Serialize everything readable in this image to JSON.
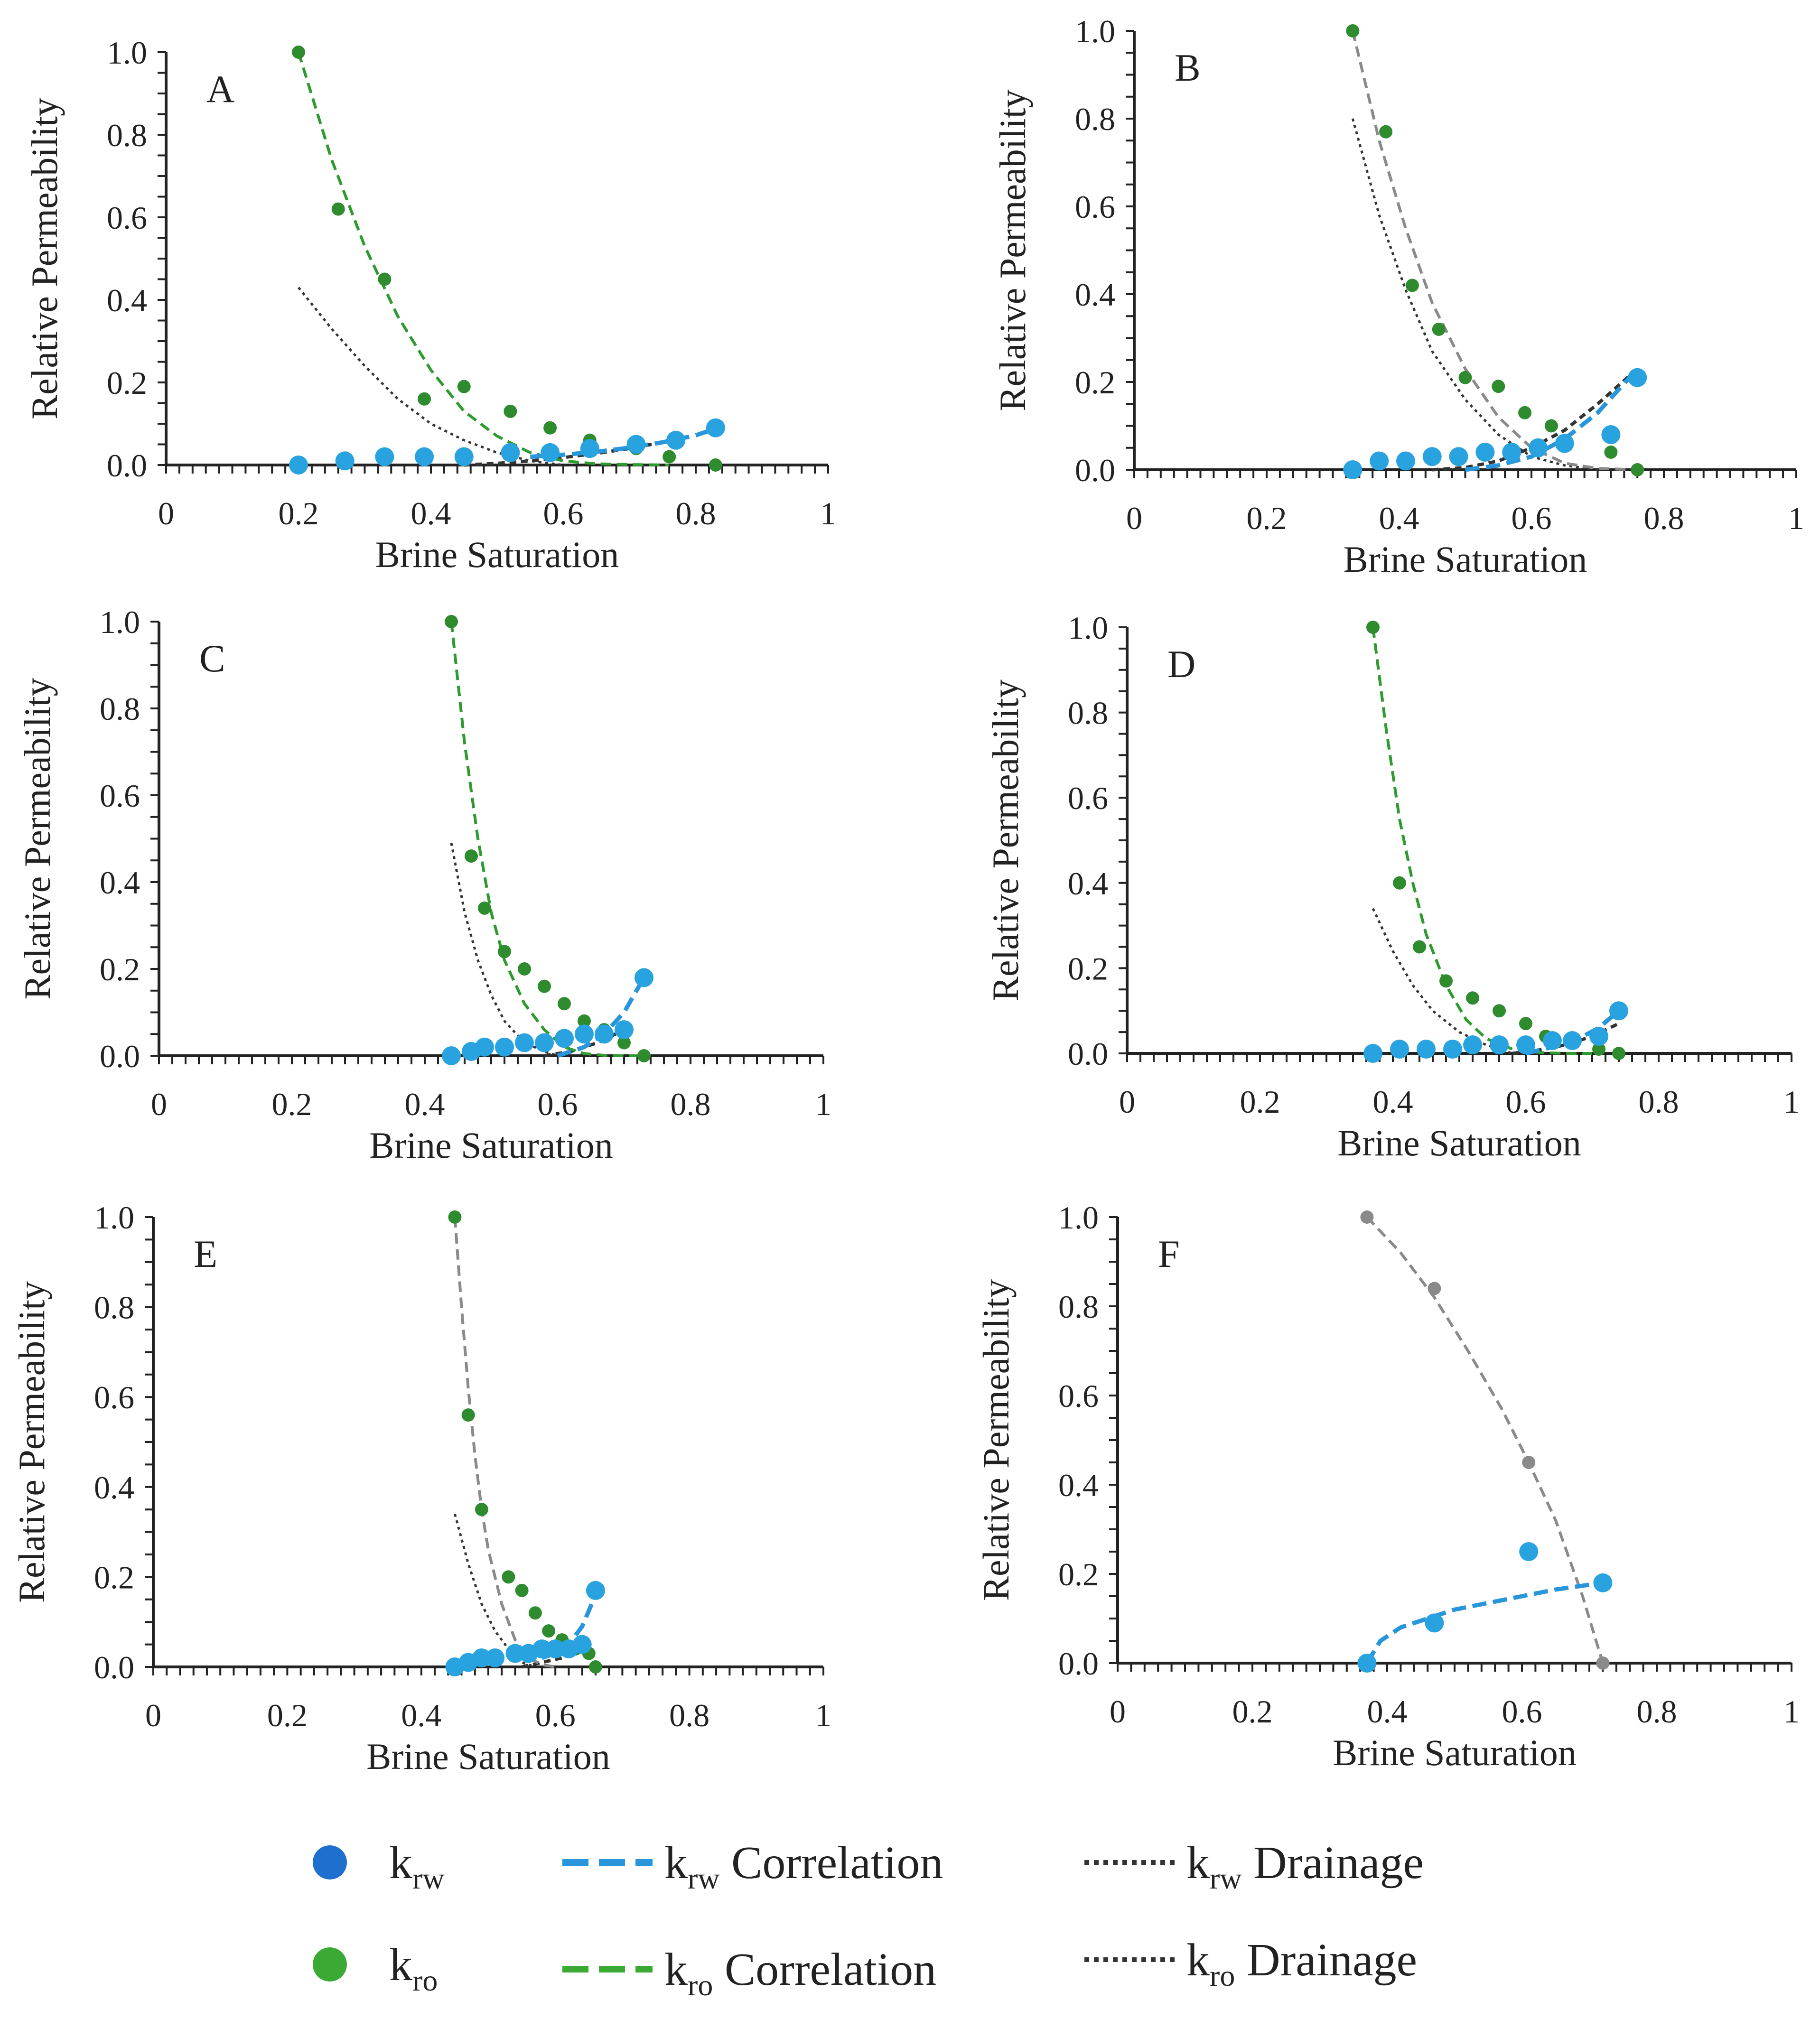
{
  "colors": {
    "krw_marker": "#29a3e0",
    "kro_marker": "#2e8b2e",
    "krw_legend_marker": "#1f6fcf",
    "kro_legend_marker": "#3aaa35",
    "krw_correlation": "#2996dc",
    "kro_correlation": "#2e9b2e",
    "drainage": "#333333",
    "gray_correlation": "#8a8a8a",
    "gray_marker": "#8a8a8a",
    "axis": "#222222"
  },
  "legend": {
    "krw": {
      "k": "k",
      "sub": "rw",
      "text": ""
    },
    "krw_correlation": {
      "k": "k",
      "sub": "rw",
      "text": " Correlation"
    },
    "krw_drainage": {
      "k": "k",
      "sub": "rw",
      "text": " Drainage"
    },
    "kro": {
      "k": "k",
      "sub": "ro",
      "text": ""
    },
    "kro_correlation": {
      "k": "k",
      "sub": "ro",
      "text": " Correlation"
    },
    "kro_drainage": {
      "k": "k",
      "sub": "ro",
      "text": " Drainage"
    }
  },
  "chart_data": [
    {
      "type": "scatter",
      "panel": "A",
      "xlabel": "Brine Saturation",
      "ylabel": "Relative Permeability",
      "xlim": [
        0,
        1
      ],
      "ylim": [
        0,
        1
      ],
      "xticks": [
        "0",
        "0.2",
        "0.4",
        "0.6",
        "0.8",
        "1"
      ],
      "yticks": [
        "0.0",
        "0.2",
        "0.4",
        "0.6",
        "0.8",
        "1.0"
      ],
      "kro_marker_style": "green",
      "kro_corr_style": "green",
      "krw": {
        "x": [
          0.2,
          0.27,
          0.33,
          0.39,
          0.45,
          0.52,
          0.58,
          0.64,
          0.71,
          0.77,
          0.83
        ],
        "y": [
          0.0,
          0.01,
          0.02,
          0.02,
          0.02,
          0.03,
          0.03,
          0.04,
          0.05,
          0.06,
          0.09
        ]
      },
      "kro": {
        "x": [
          0.2,
          0.26,
          0.33,
          0.39,
          0.45,
          0.52,
          0.58,
          0.64,
          0.71,
          0.76,
          0.83
        ],
        "y": [
          1.0,
          0.62,
          0.45,
          0.16,
          0.19,
          0.13,
          0.09,
          0.06,
          0.04,
          0.02,
          0.0
        ]
      },
      "krw_corr": {
        "x": [
          0.55,
          0.6,
          0.65,
          0.7,
          0.75,
          0.8,
          0.83
        ],
        "y": [
          0.02,
          0.025,
          0.032,
          0.042,
          0.055,
          0.072,
          0.088
        ]
      },
      "kro_corr": {
        "x": [
          0.2,
          0.25,
          0.3,
          0.35,
          0.4,
          0.45,
          0.5,
          0.55,
          0.6,
          0.65,
          0.7,
          0.76
        ],
        "y": [
          1.0,
          0.74,
          0.53,
          0.36,
          0.23,
          0.13,
          0.07,
          0.03,
          0.01,
          0.003,
          0.001,
          0.0
        ]
      },
      "krw_drain": {
        "x": [
          0.45,
          0.5,
          0.55,
          0.6,
          0.65,
          0.7,
          0.75
        ],
        "y": [
          0.0,
          0.004,
          0.01,
          0.018,
          0.028,
          0.04,
          0.055
        ]
      },
      "kro_drain": {
        "x": [
          0.2,
          0.25,
          0.3,
          0.35,
          0.4,
          0.45,
          0.5,
          0.55,
          0.6
        ],
        "y": [
          0.43,
          0.33,
          0.24,
          0.16,
          0.1,
          0.06,
          0.03,
          0.01,
          0.0
        ]
      }
    },
    {
      "type": "scatter",
      "panel": "B",
      "xlabel": "Brine Saturation",
      "ylabel": "Relative Permeability",
      "xlim": [
        0,
        1
      ],
      "ylim": [
        0,
        1
      ],
      "xticks": [
        "0",
        "0.2",
        "0.4",
        "0.6",
        "0.8",
        "1"
      ],
      "yticks": [
        "0.0",
        "0.2",
        "0.4",
        "0.6",
        "0.8",
        "1.0"
      ],
      "kro_marker_style": "green",
      "kro_corr_style": "gray",
      "krw": {
        "x": [
          0.33,
          0.37,
          0.41,
          0.45,
          0.49,
          0.53,
          0.57,
          0.61,
          0.65,
          0.72,
          0.76
        ],
        "y": [
          0.0,
          0.02,
          0.02,
          0.03,
          0.03,
          0.04,
          0.04,
          0.05,
          0.06,
          0.08,
          0.21
        ]
      },
      "kro": {
        "x": [
          0.33,
          0.38,
          0.42,
          0.46,
          0.5,
          0.55,
          0.59,
          0.63,
          0.72,
          0.76
        ],
        "y": [
          1.0,
          0.77,
          0.42,
          0.32,
          0.21,
          0.19,
          0.13,
          0.1,
          0.04,
          0.0
        ]
      },
      "krw_corr": {
        "x": [
          0.5,
          0.55,
          0.6,
          0.65,
          0.7,
          0.76
        ],
        "y": [
          0.0,
          0.01,
          0.03,
          0.07,
          0.13,
          0.23
        ]
      },
      "kro_corr": {
        "x": [
          0.33,
          0.37,
          0.41,
          0.45,
          0.5,
          0.55,
          0.6,
          0.65,
          0.7,
          0.76
        ],
        "y": [
          1.0,
          0.75,
          0.55,
          0.38,
          0.23,
          0.12,
          0.05,
          0.015,
          0.003,
          0.0
        ]
      },
      "krw_drain": {
        "x": [
          0.45,
          0.5,
          0.55,
          0.6,
          0.65,
          0.7,
          0.76
        ],
        "y": [
          0.0,
          0.005,
          0.02,
          0.05,
          0.09,
          0.15,
          0.23
        ]
      },
      "kro_drain": {
        "x": [
          0.33,
          0.37,
          0.41,
          0.45,
          0.5,
          0.55,
          0.6,
          0.65,
          0.7
        ],
        "y": [
          0.8,
          0.58,
          0.41,
          0.27,
          0.16,
          0.08,
          0.03,
          0.01,
          0.0
        ]
      }
    },
    {
      "type": "scatter",
      "panel": "C",
      "xlabel": "Brine Saturation",
      "ylabel": "Relative Permeability",
      "xlim": [
        0,
        1
      ],
      "ylim": [
        0,
        1
      ],
      "xticks": [
        "0",
        "0.2",
        "0.4",
        "0.6",
        "0.8",
        "1"
      ],
      "yticks": [
        "0.0",
        "0.2",
        "0.4",
        "0.6",
        "0.8",
        "1.0"
      ],
      "kro_marker_style": "green",
      "kro_corr_style": "green",
      "krw": {
        "x": [
          0.44,
          0.47,
          0.49,
          0.52,
          0.55,
          0.58,
          0.61,
          0.64,
          0.67,
          0.7,
          0.73
        ],
        "y": [
          0.0,
          0.01,
          0.02,
          0.02,
          0.03,
          0.03,
          0.04,
          0.05,
          0.05,
          0.06,
          0.18
        ]
      },
      "kro": {
        "x": [
          0.44,
          0.47,
          0.49,
          0.52,
          0.55,
          0.58,
          0.61,
          0.64,
          0.67,
          0.7,
          0.73
        ],
        "y": [
          1.0,
          0.46,
          0.34,
          0.24,
          0.2,
          0.16,
          0.12,
          0.08,
          0.06,
          0.03,
          0.0
        ]
      },
      "krw_corr": {
        "x": [
          0.6,
          0.64,
          0.67,
          0.7,
          0.73
        ],
        "y": [
          0.0,
          0.02,
          0.05,
          0.1,
          0.18
        ]
      },
      "kro_corr": {
        "x": [
          0.44,
          0.46,
          0.48,
          0.5,
          0.52,
          0.55,
          0.58,
          0.61,
          0.64,
          0.67,
          0.7,
          0.73
        ],
        "y": [
          1.0,
          0.72,
          0.5,
          0.33,
          0.22,
          0.12,
          0.06,
          0.02,
          0.005,
          0.001,
          0.0,
          0.0
        ]
      },
      "krw_drain": {
        "x": [
          0.58,
          0.62,
          0.66,
          0.7
        ],
        "y": [
          0.0,
          0.01,
          0.03,
          0.06
        ]
      },
      "kro_drain": {
        "x": [
          0.44,
          0.46,
          0.48,
          0.5,
          0.52,
          0.55,
          0.58,
          0.6
        ],
        "y": [
          0.49,
          0.33,
          0.22,
          0.14,
          0.08,
          0.03,
          0.01,
          0.0
        ]
      }
    },
    {
      "type": "scatter",
      "panel": "D",
      "xlabel": "Brine Saturation",
      "ylabel": "Relative Permeability",
      "xlim": [
        0,
        1
      ],
      "ylim": [
        0,
        1
      ],
      "xticks": [
        "0",
        "0.2",
        "0.4",
        "0.6",
        "0.8",
        "1"
      ],
      "yticks": [
        "0.0",
        "0.2",
        "0.4",
        "0.6",
        "0.8",
        "1.0"
      ],
      "kro_marker_style": "green",
      "kro_corr_style": "green",
      "krw": {
        "x": [
          0.37,
          0.41,
          0.45,
          0.49,
          0.52,
          0.56,
          0.6,
          0.64,
          0.67,
          0.71,
          0.74
        ],
        "y": [
          0.0,
          0.01,
          0.01,
          0.01,
          0.02,
          0.02,
          0.02,
          0.03,
          0.03,
          0.04,
          0.1
        ]
      },
      "kro": {
        "x": [
          0.37,
          0.41,
          0.44,
          0.48,
          0.52,
          0.56,
          0.6,
          0.63,
          0.67,
          0.71,
          0.74
        ],
        "y": [
          1.0,
          0.4,
          0.25,
          0.17,
          0.13,
          0.1,
          0.07,
          0.04,
          0.03,
          0.01,
          0.0
        ]
      },
      "krw_corr": {
        "x": [
          0.6,
          0.64,
          0.68,
          0.71,
          0.74
        ],
        "y": [
          0.0,
          0.015,
          0.035,
          0.06,
          0.1
        ]
      },
      "kro_corr": {
        "x": [
          0.37,
          0.39,
          0.41,
          0.43,
          0.45,
          0.48,
          0.51,
          0.54,
          0.58,
          0.62,
          0.66,
          0.7
        ],
        "y": [
          1.0,
          0.76,
          0.55,
          0.4,
          0.28,
          0.16,
          0.08,
          0.035,
          0.01,
          0.002,
          0.0,
          0.0
        ]
      },
      "krw_drain": {
        "x": [
          0.58,
          0.62,
          0.66,
          0.7,
          0.74
        ],
        "y": [
          0.0,
          0.008,
          0.02,
          0.04,
          0.07
        ]
      },
      "kro_drain": {
        "x": [
          0.37,
          0.4,
          0.43,
          0.46,
          0.5,
          0.54,
          0.58
        ],
        "y": [
          0.34,
          0.24,
          0.16,
          0.1,
          0.05,
          0.02,
          0.0
        ]
      }
    },
    {
      "type": "scatter",
      "panel": "E",
      "xlabel": "Brine Saturation",
      "ylabel": "Relative Permeability",
      "xlim": [
        0,
        1
      ],
      "ylim": [
        0,
        1
      ],
      "xticks": [
        "0",
        "0.2",
        "0.4",
        "0.6",
        "0.8",
        "1"
      ],
      "yticks": [
        "0.0",
        "0.2",
        "0.4",
        "0.6",
        "0.8",
        "1.0"
      ],
      "kro_marker_style": "green",
      "kro_corr_style": "gray",
      "krw": {
        "x": [
          0.45,
          0.47,
          0.49,
          0.51,
          0.54,
          0.56,
          0.58,
          0.6,
          0.62,
          0.64,
          0.66
        ],
        "y": [
          0.0,
          0.01,
          0.02,
          0.02,
          0.03,
          0.03,
          0.04,
          0.04,
          0.04,
          0.05,
          0.17
        ]
      },
      "kro": {
        "x": [
          0.45,
          0.47,
          0.49,
          0.53,
          0.55,
          0.57,
          0.59,
          0.61,
          0.63,
          0.65,
          0.66
        ],
        "y": [
          1.0,
          0.56,
          0.35,
          0.2,
          0.17,
          0.12,
          0.08,
          0.06,
          0.04,
          0.03,
          0.0
        ]
      },
      "krw_corr": {
        "x": [
          0.58,
          0.6,
          0.62,
          0.64,
          0.66
        ],
        "y": [
          0.02,
          0.03,
          0.05,
          0.09,
          0.16
        ]
      },
      "kro_corr": {
        "x": [
          0.45,
          0.46,
          0.47,
          0.48,
          0.49,
          0.5,
          0.52,
          0.54,
          0.56,
          0.58,
          0.6
        ],
        "y": [
          1.0,
          0.8,
          0.62,
          0.47,
          0.35,
          0.26,
          0.14,
          0.06,
          0.02,
          0.005,
          0.0
        ]
      },
      "krw_drain": {
        "x": [
          0.55,
          0.58,
          0.61,
          0.64
        ],
        "y": [
          0.0,
          0.01,
          0.02,
          0.04
        ]
      },
      "kro_drain": {
        "x": [
          0.45,
          0.47,
          0.49,
          0.51,
          0.53,
          0.55,
          0.57
        ],
        "y": [
          0.34,
          0.23,
          0.14,
          0.08,
          0.04,
          0.01,
          0.0
        ]
      }
    },
    {
      "type": "scatter",
      "panel": "F",
      "xlabel": "Brine Saturation",
      "ylabel": "Relative Permeability",
      "xlim": [
        0,
        1
      ],
      "ylim": [
        0,
        1
      ],
      "xticks": [
        "0",
        "0.2",
        "0.4",
        "0.6",
        "0.8",
        "1"
      ],
      "yticks": [
        "0.0",
        "0.2",
        "0.4",
        "0.6",
        "0.8",
        "1.0"
      ],
      "kro_marker_style": "gray",
      "kro_corr_style": "gray",
      "krw": {
        "x": [
          0.37,
          0.47,
          0.61,
          0.72
        ],
        "y": [
          0.0,
          0.09,
          0.25,
          0.18
        ]
      },
      "kro": {
        "x": [
          0.37,
          0.47,
          0.61,
          0.72
        ],
        "y": [
          1.0,
          0.84,
          0.45,
          0.0
        ]
      },
      "krw_corr": {
        "x": [
          0.37,
          0.39,
          0.42,
          0.46,
          0.5,
          0.55,
          0.6,
          0.65,
          0.72
        ],
        "y": [
          0.0,
          0.05,
          0.08,
          0.1,
          0.12,
          0.135,
          0.15,
          0.165,
          0.18
        ]
      },
      "kro_corr": {
        "x": [
          0.37,
          0.42,
          0.47,
          0.52,
          0.57,
          0.61,
          0.65,
          0.69,
          0.72
        ],
        "y": [
          1.0,
          0.92,
          0.82,
          0.7,
          0.57,
          0.45,
          0.32,
          0.15,
          0.0
        ]
      },
      "krw_drain": {
        "x": [],
        "y": []
      },
      "kro_drain": {
        "x": [],
        "y": []
      }
    }
  ]
}
